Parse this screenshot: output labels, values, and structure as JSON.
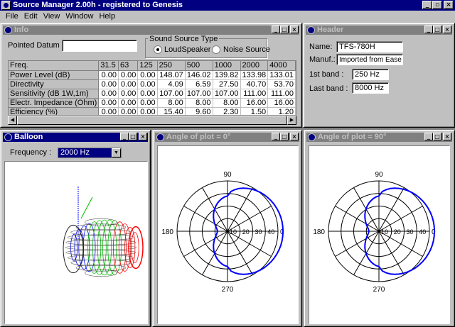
{
  "app": {
    "title": "Source Manager 2.00h - registered to Genesis",
    "window_buttons": [
      "_",
      "▫",
      "×"
    ]
  },
  "menu": [
    "File",
    "Edit",
    "View",
    "Window",
    "Help"
  ],
  "info": {
    "title": "Info",
    "pointed_datum_label": "Pointed Datum :",
    "pointed_datum_value": "",
    "sound_source_type_label": "Sound Source Type",
    "radio_loudspeaker": "LoudSpeaker",
    "radio_noise": "Noise Source",
    "selected_source": "LoudSpeaker",
    "table": {
      "headers": [
        "Freq.",
        "31.5",
        "63",
        "125",
        "250",
        "500",
        "1000",
        "2000",
        "4000"
      ],
      "rows": [
        {
          "label": "Power Level (dB)",
          "values": [
            "0.00",
            "0.00",
            "0.00",
            "148.07",
            "146.02",
            "139.82",
            "133.98",
            "133.01"
          ]
        },
        {
          "label": "Directivity",
          "values": [
            "0.00",
            "0.00",
            "0.00",
            "4.09",
            "6.59",
            "27.50",
            "40.70",
            "53.70"
          ]
        },
        {
          "label": "Sensitivity (dB 1W,1m)",
          "values": [
            "0.00",
            "0.00",
            "0.00",
            "107.00",
            "107.00",
            "107.00",
            "111.00",
            "111.00"
          ]
        },
        {
          "label": "Electr. Impedance (Ohm)",
          "values": [
            "0.00",
            "0.00",
            "0.00",
            "8.00",
            "8.00",
            "8.00",
            "16.00",
            "16.00"
          ]
        },
        {
          "label": "Efficiency (%)",
          "values": [
            "0.00",
            "0.00",
            "0.00",
            "15.40",
            "9.60",
            "2.30",
            "1.50",
            "1.20"
          ]
        }
      ]
    }
  },
  "header": {
    "title": "Header",
    "name_label": "Name:",
    "name_value": "TFS-780H",
    "manuf_label": "Manuf.:",
    "manuf_value": "Imported from Ease",
    "first_band_label": "1st band :",
    "first_band_value": "250 Hz",
    "last_band_label": "Last band :",
    "last_band_value": "8000 Hz"
  },
  "balloon": {
    "title": "Balloon",
    "frequency_label": "Frequency :",
    "frequency_value": "2000 Hz"
  },
  "polar_plots": [
    {
      "title": "Angle of plot = 0°",
      "labels": {
        "top": "90",
        "left": "180",
        "right": "0",
        "bottom": "270"
      },
      "ring_labels": [
        "10",
        "20",
        "30",
        "40"
      ],
      "line_color": "#0000ff",
      "pattern": {
        "front_db": 44,
        "side_db": 28,
        "back_db": 8
      }
    },
    {
      "title": "Angle of plot = 90°",
      "labels": {
        "top": "90",
        "left": "180",
        "right": "0",
        "bottom": "270"
      },
      "ring_labels": [
        "10",
        "20",
        "30",
        "40"
      ],
      "line_color": "#0000ff",
      "pattern": {
        "front_db": 44,
        "side_db": 28,
        "back_db": 8
      }
    }
  ],
  "colors": {
    "title_active": "#000080",
    "title_inactive": "#808080",
    "face": "#c0c0c0",
    "balloon_wire_red": "#ff0000",
    "balloon_wire_green": "#00c000",
    "balloon_wire_blue": "#0000ff"
  }
}
